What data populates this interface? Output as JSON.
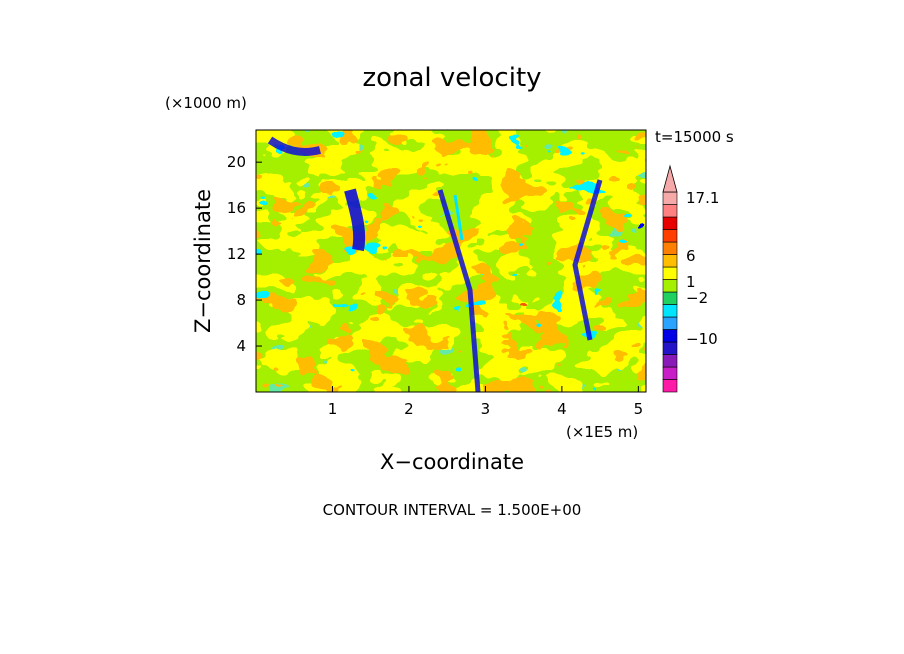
{
  "chart_data": {
    "type": "heatmap",
    "title": "zonal velocity",
    "xlabel": "X−coordinate",
    "ylabel": "Z−coordinate",
    "x_scale_label": "(×1E5 m)",
    "y_scale_label": "(×1000 m)",
    "xlim": [
      0.0,
      5.1
    ],
    "ylim": [
      0,
      22.8
    ],
    "x_ticks": [
      1,
      2,
      3,
      4,
      5
    ],
    "y_ticks": [
      4,
      8,
      12,
      16,
      20
    ],
    "time_label": "t=15000 s",
    "contour_interval_label": "CONTOUR INTERVAL = 1.500E+00",
    "colorbar": {
      "labels": [
        "17.1",
        "6",
        "1",
        "−2",
        "−10"
      ],
      "levels": [
        {
          "color": "#ff1aa8"
        },
        {
          "color": "#c81ec8"
        },
        {
          "color": "#8a1ab8"
        },
        {
          "color": "#2414c8"
        },
        {
          "color": "#0000e6"
        },
        {
          "color": "#2aa3ff"
        },
        {
          "color": "#00e5ff"
        },
        {
          "color": "#20d060"
        },
        {
          "color": "#a4f000"
        },
        {
          "color": "#ffff00"
        },
        {
          "color": "#ffbf00"
        },
        {
          "color": "#ff7f00"
        },
        {
          "color": "#ff3f00"
        },
        {
          "color": "#e60000"
        },
        {
          "color": "#ff8080"
        },
        {
          "color": "#f6a9a9"
        }
      ]
    }
  }
}
